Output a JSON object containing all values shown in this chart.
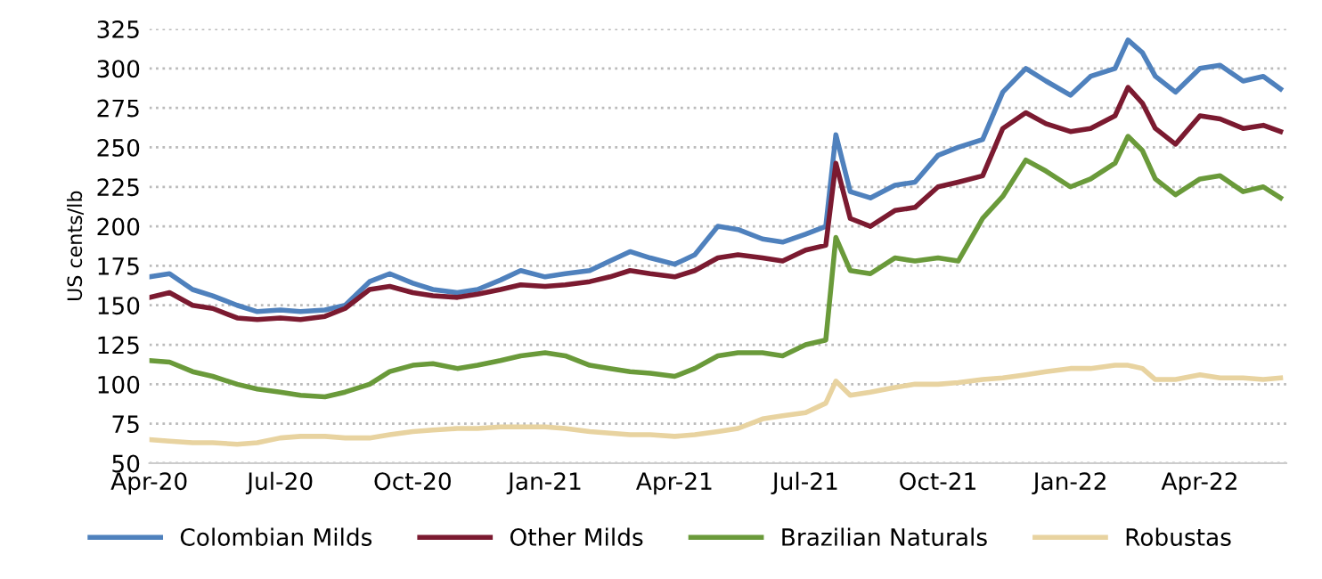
{
  "chart_data": {
    "type": "line",
    "ylabel": "US cents/lb",
    "x": [
      "2020-04-01",
      "2020-04-15",
      "2020-05-01",
      "2020-05-15",
      "2020-06-01",
      "2020-06-15",
      "2020-07-01",
      "2020-07-15",
      "2020-08-01",
      "2020-08-15",
      "2020-09-01",
      "2020-09-15",
      "2020-10-01",
      "2020-10-15",
      "2020-11-01",
      "2020-11-15",
      "2020-12-01",
      "2020-12-15",
      "2021-01-01",
      "2021-01-15",
      "2021-02-01",
      "2021-02-15",
      "2021-03-01",
      "2021-03-15",
      "2021-04-01",
      "2021-04-15",
      "2021-05-01",
      "2021-05-15",
      "2021-06-01",
      "2021-06-15",
      "2021-07-01",
      "2021-07-15",
      "2021-07-22",
      "2021-08-01",
      "2021-08-15",
      "2021-09-01",
      "2021-09-15",
      "2021-10-01",
      "2021-10-15",
      "2021-11-01",
      "2021-11-15",
      "2021-12-01",
      "2021-12-15",
      "2022-01-01",
      "2022-01-15",
      "2022-02-01",
      "2022-02-10",
      "2022-02-20",
      "2022-03-01",
      "2022-03-15",
      "2022-04-01",
      "2022-04-15",
      "2022-05-01",
      "2022-05-15",
      "2022-05-27"
    ],
    "series": [
      {
        "name": "Colombian Milds",
        "color": "#4f81bd",
        "values": [
          168,
          170,
          160,
          156,
          150,
          146,
          147,
          146,
          147,
          150,
          165,
          170,
          164,
          160,
          158,
          160,
          166,
          172,
          168,
          170,
          172,
          178,
          184,
          180,
          176,
          182,
          200,
          198,
          192,
          190,
          195,
          200,
          258,
          222,
          218,
          226,
          228,
          245,
          250,
          255,
          285,
          300,
          292,
          283,
          295,
          300,
          318,
          310,
          295,
          285,
          300,
          302,
          292,
          295,
          287
        ]
      },
      {
        "name": "Other Milds",
        "color": "#7b1a30",
        "values": [
          155,
          158,
          150,
          148,
          142,
          141,
          142,
          141,
          143,
          148,
          160,
          162,
          158,
          156,
          155,
          157,
          160,
          163,
          162,
          163,
          165,
          168,
          172,
          170,
          168,
          172,
          180,
          182,
          180,
          178,
          185,
          188,
          240,
          205,
          200,
          210,
          212,
          225,
          228,
          232,
          262,
          272,
          265,
          260,
          262,
          270,
          288,
          278,
          262,
          252,
          270,
          268,
          262,
          264,
          260
        ]
      },
      {
        "name": "Brazilian Naturals",
        "color": "#6a9a3a",
        "values": [
          115,
          114,
          108,
          105,
          100,
          97,
          95,
          93,
          92,
          95,
          100,
          108,
          112,
          113,
          110,
          112,
          115,
          118,
          120,
          118,
          112,
          110,
          108,
          107,
          105,
          110,
          118,
          120,
          120,
          118,
          125,
          128,
          193,
          172,
          170,
          180,
          178,
          180,
          178,
          205,
          219,
          242,
          235,
          225,
          230,
          240,
          257,
          248,
          230,
          220,
          230,
          232,
          222,
          225,
          218
        ]
      },
      {
        "name": "Robustas",
        "color": "#e8d3a0",
        "values": [
          65,
          64,
          63,
          63,
          62,
          63,
          66,
          67,
          67,
          66,
          66,
          68,
          70,
          71,
          72,
          72,
          73,
          73,
          73,
          72,
          70,
          69,
          68,
          68,
          67,
          68,
          70,
          72,
          78,
          80,
          82,
          88,
          102,
          93,
          95,
          98,
          100,
          100,
          101,
          103,
          104,
          106,
          108,
          110,
          110,
          112,
          112,
          110,
          103,
          103,
          106,
          104,
          104,
          103,
          104
        ]
      }
    ],
    "xlim": [
      "2020-04-01",
      "2022-05-31"
    ],
    "xticks": [
      {
        "value": "2020-04-01",
        "label": "Apr-20"
      },
      {
        "value": "2020-07-01",
        "label": "Jul-20"
      },
      {
        "value": "2020-10-01",
        "label": "Oct-20"
      },
      {
        "value": "2021-01-01",
        "label": "Jan-21"
      },
      {
        "value": "2021-04-01",
        "label": "Apr-21"
      },
      {
        "value": "2021-07-01",
        "label": "Jul-21"
      },
      {
        "value": "2021-10-01",
        "label": "Oct-21"
      },
      {
        "value": "2022-01-01",
        "label": "Jan-22"
      },
      {
        "value": "2022-04-01",
        "label": "Apr-22"
      }
    ],
    "ylim": [
      50,
      325
    ],
    "yticks": [
      50,
      75,
      100,
      125,
      150,
      175,
      200,
      225,
      250,
      275,
      300,
      325
    ],
    "grid": "y",
    "legend": "bottom",
    "line_style": "solid",
    "marker": "none"
  }
}
